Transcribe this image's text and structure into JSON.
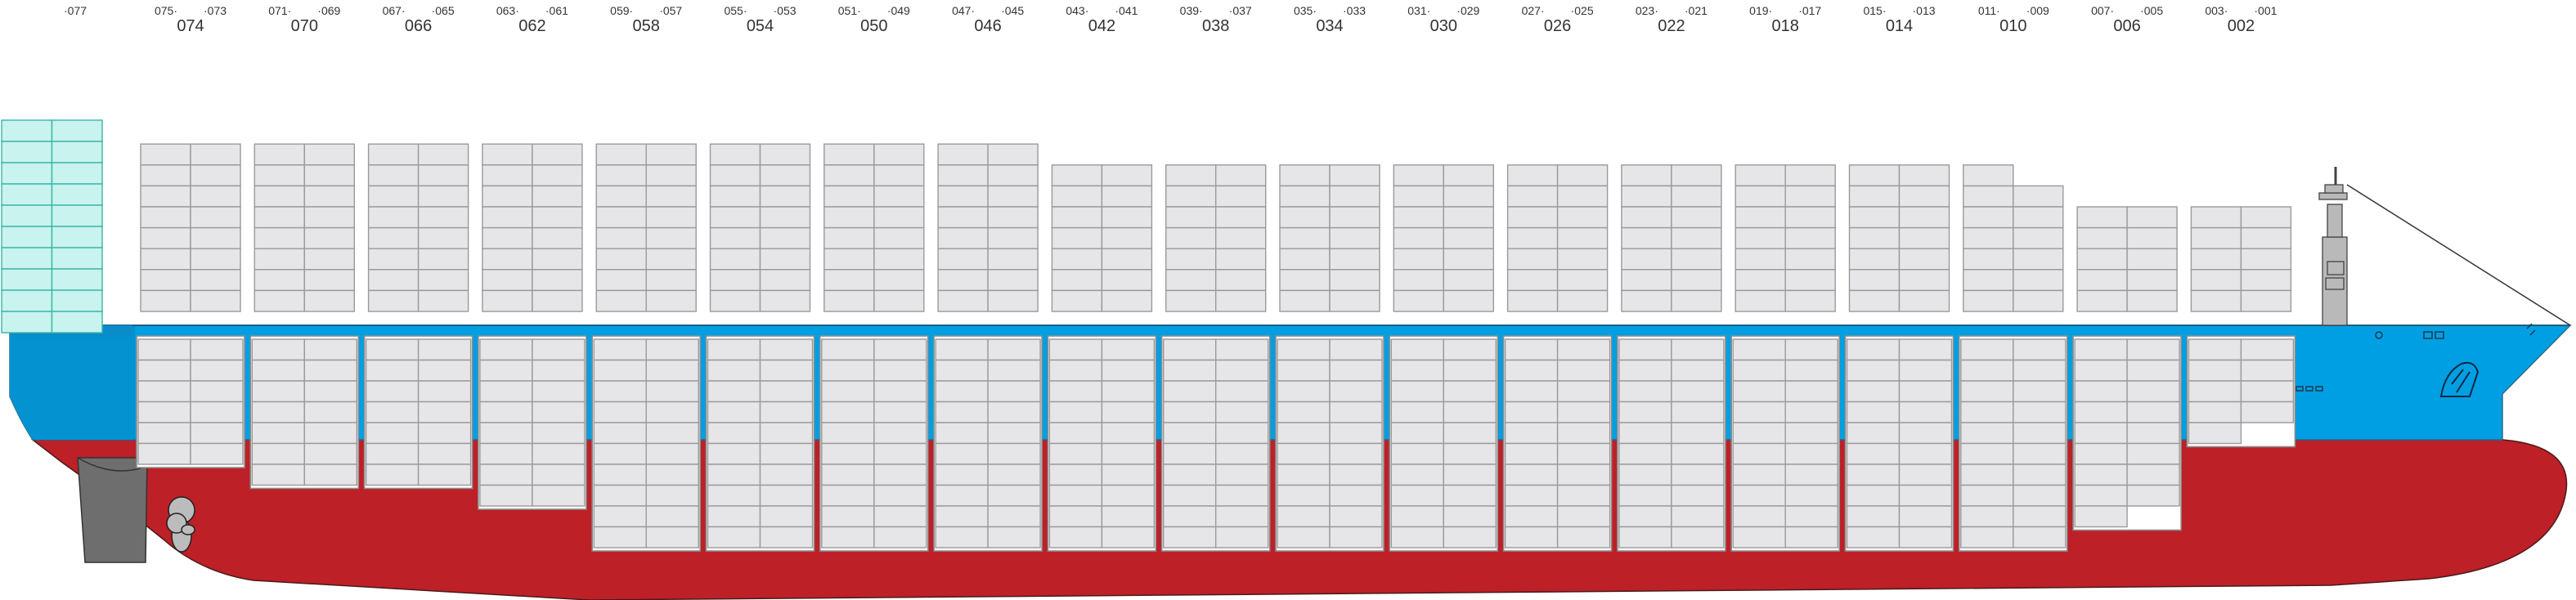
{
  "diagram": {
    "colors": {
      "hull_red": "#bd2027",
      "hull_blue": "#009fe3",
      "hull_blue_dark": "#0492d0",
      "container_fill": "#e6e6e8",
      "container_stroke": "#9a9a9a",
      "bridge_fill": "#c8f3ee",
      "bridge_stroke": "#39b6a6",
      "rudder": "#6e6e6e"
    },
    "bays": [
      {
        "even": "",
        "odd_left": "",
        "odd_right": "077"
      },
      {
        "even": "074",
        "odd_left": "075",
        "odd_right": "073"
      },
      {
        "even": "070",
        "odd_left": "071",
        "odd_right": "069"
      },
      {
        "even": "066",
        "odd_left": "067",
        "odd_right": "065"
      },
      {
        "even": "062",
        "odd_left": "063",
        "odd_right": "061"
      },
      {
        "even": "058",
        "odd_left": "059",
        "odd_right": "057"
      },
      {
        "even": "054",
        "odd_left": "055",
        "odd_right": "053"
      },
      {
        "even": "050",
        "odd_left": "051",
        "odd_right": "049"
      },
      {
        "even": "046",
        "odd_left": "047",
        "odd_right": "045"
      },
      {
        "even": "042",
        "odd_left": "043",
        "odd_right": "041"
      },
      {
        "even": "038",
        "odd_left": "039",
        "odd_right": "037"
      },
      {
        "even": "034",
        "odd_left": "035",
        "odd_right": "033"
      },
      {
        "even": "030",
        "odd_left": "031",
        "odd_right": "029"
      },
      {
        "even": "026",
        "odd_left": "027",
        "odd_right": "025"
      },
      {
        "even": "022",
        "odd_left": "023",
        "odd_right": "021"
      },
      {
        "even": "018",
        "odd_left": "019",
        "odd_right": "017"
      },
      {
        "even": "014",
        "odd_left": "015",
        "odd_right": "013"
      },
      {
        "even": "010",
        "odd_left": "011",
        "odd_right": "009"
      },
      {
        "even": "006",
        "odd_left": "007",
        "odd_right": "005"
      },
      {
        "even": "002",
        "odd_left": "003",
        "odd_right": "001"
      }
    ],
    "deck_tiers": [
      0,
      8,
      8,
      8,
      8,
      8,
      8,
      8,
      8,
      7,
      7,
      7,
      7,
      7,
      7,
      7,
      7,
      6,
      5,
      5
    ],
    "deck_partial_top_left": [
      false,
      false,
      false,
      false,
      false,
      false,
      false,
      false,
      false,
      false,
      false,
      false,
      false,
      false,
      false,
      false,
      false,
      true,
      false,
      false
    ],
    "hold_tiers": [
      0,
      6,
      7,
      7,
      8,
      10,
      10,
      10,
      10,
      10,
      10,
      10,
      10,
      10,
      10,
      10,
      10,
      10,
      9,
      5
    ],
    "hold_missing_right_bottom": [
      0,
      0,
      0,
      0,
      0,
      0,
      0,
      0,
      0,
      0,
      0,
      0,
      0,
      0,
      0,
      0,
      0,
      0,
      1,
      1
    ],
    "bridge_tiers": 10
  }
}
